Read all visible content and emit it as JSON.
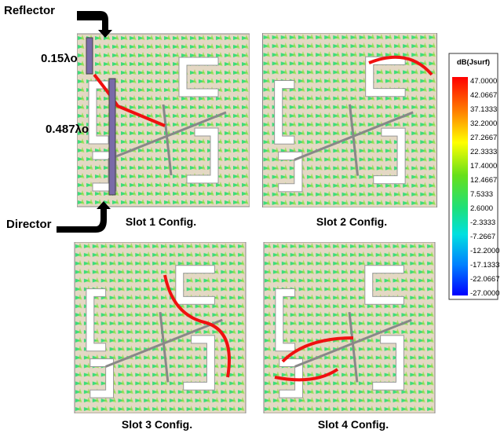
{
  "labels": {
    "reflector": "Reflector",
    "director": "Director",
    "dim_top": "0.15λo",
    "dim_main": "0.487λo"
  },
  "panels": [
    {
      "caption": "Slot 1 Config."
    },
    {
      "caption": "Slot 2 Config."
    },
    {
      "caption": "Slot 3 Config."
    },
    {
      "caption": "Slot 4 Config."
    }
  ],
  "color_scale": {
    "title": "dB(Jsurf)",
    "ticks": [
      "47.0000",
      "42.0667",
      "37.1333",
      "32.2000",
      "27.2667",
      "22.3333",
      "17.4000",
      "12.4667",
      "7.5333",
      "2.6000",
      "-2.3333",
      "-7.2667",
      "-12.2000",
      "-17.1333",
      "-22.0667",
      "-27.0000"
    ]
  }
}
